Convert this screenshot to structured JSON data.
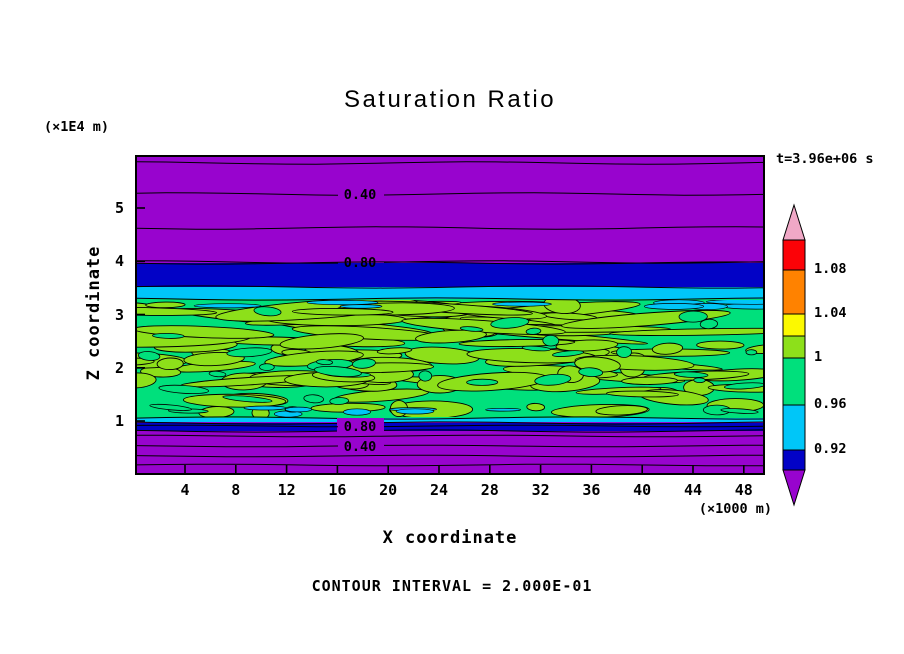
{
  "title": "Saturation Ratio",
  "annotations": {
    "time_label": "t=3.96e+06 s",
    "contour_interval_label": "CONTOUR INTERVAL = 2.000E-01",
    "y_units": "(×1E4 m)",
    "x_units": "(×1000 m)"
  },
  "axes": {
    "x_label": "X coordinate",
    "y_label": "Z coordinate",
    "x_ticks": [
      4,
      8,
      12,
      16,
      20,
      24,
      28,
      32,
      36,
      40,
      44,
      48
    ],
    "y_ticks": [
      5,
      4,
      3,
      2,
      1
    ]
  },
  "colorbar": {
    "top_arrow_color": "#F0A8C6",
    "bottom_arrow_color": "#9804CE",
    "labels": [
      "1.08",
      "1.04",
      "1",
      "0.96",
      "0.92"
    ],
    "segments": [
      {
        "color": "#FC0207",
        "label_below": "1.08"
      },
      {
        "color": "#FF8200",
        "label_below": "1.04"
      },
      {
        "color": "#FCF900",
        "label_below": ""
      },
      {
        "color": "#8DE01A",
        "label_below": "1"
      },
      {
        "color": "#00E07C",
        "label_below": "0.96"
      },
      {
        "color": "#00C6F8",
        "label_below": "0.92"
      },
      {
        "color": "#0202C6",
        "label_below": ""
      }
    ]
  },
  "field_colors": {
    "background_purple": "#9804CE",
    "band_blue": "#0202C6",
    "band_cyan": "#00C6F8",
    "green_base": "#00E07C",
    "green_blob": "#8DE01A"
  },
  "contour_line_labels": [
    {
      "text": "0.40",
      "region": "top"
    },
    {
      "text": "0.80",
      "region": "top"
    },
    {
      "text": "0.80",
      "region": "bottom"
    },
    {
      "text": "0.40",
      "region": "bottom"
    }
  ],
  "chart_data": {
    "type": "contour",
    "title": "Saturation Ratio",
    "xlabel": "X coordinate (×1000 m)",
    "ylabel": "Z coordinate (×1E4 m)",
    "xlim": [
      0,
      50
    ],
    "ylim": [
      0,
      6
    ],
    "x_ticks": [
      4,
      8,
      12,
      16,
      20,
      24,
      28,
      32,
      36,
      40,
      44,
      48
    ],
    "y_ticks": [
      1,
      2,
      3,
      4,
      5
    ],
    "grid": false,
    "legend_position": "right-colorbar",
    "contour_interval": 0.2,
    "time_annotation": "t=3.96e+06 s",
    "colorbar_levels": [
      0.92,
      0.96,
      1,
      1.04,
      1.08
    ],
    "labeled_line_contours": [
      {
        "value": 0.4,
        "z_approx": 5.3,
        "region": "top"
      },
      {
        "value": 0.8,
        "z_approx": 4.0,
        "region": "top"
      },
      {
        "value": 0.8,
        "z_approx": 0.92,
        "region": "bottom"
      },
      {
        "value": 0.4,
        "z_approx": 0.55,
        "region": "bottom"
      }
    ],
    "bands": [
      {
        "z_from": 4.05,
        "z_to": 6.0,
        "value_range": "< 0.88",
        "color": "#9804CE",
        "note": "purple region with unlabeled/labeled line contours 0.2-0.8"
      },
      {
        "z_from": 3.55,
        "z_to": 4.05,
        "value_range": "0.88-0.92",
        "color": "#0202C6"
      },
      {
        "z_from": 3.3,
        "z_to": 3.55,
        "value_range": "0.92-0.96",
        "color": "#00C6F8"
      },
      {
        "z_from": 1.07,
        "z_to": 3.3,
        "value_range": "0.96-1.04",
        "color": "#00E07C",
        "note": "mottled cloud layer: green base 0.96-1 with yellow-green patches 1-1.04"
      },
      {
        "z_from": 0.83,
        "z_to": 1.0,
        "value_range": "0.88-0.92",
        "color": "#0202C6"
      },
      {
        "z_from": 0.0,
        "z_to": 0.83,
        "value_range": "< 0.88",
        "color": "#9804CE",
        "note": "purple region with line contours 0.8, 0.6, 0.4, 0.2 downward"
      }
    ]
  }
}
